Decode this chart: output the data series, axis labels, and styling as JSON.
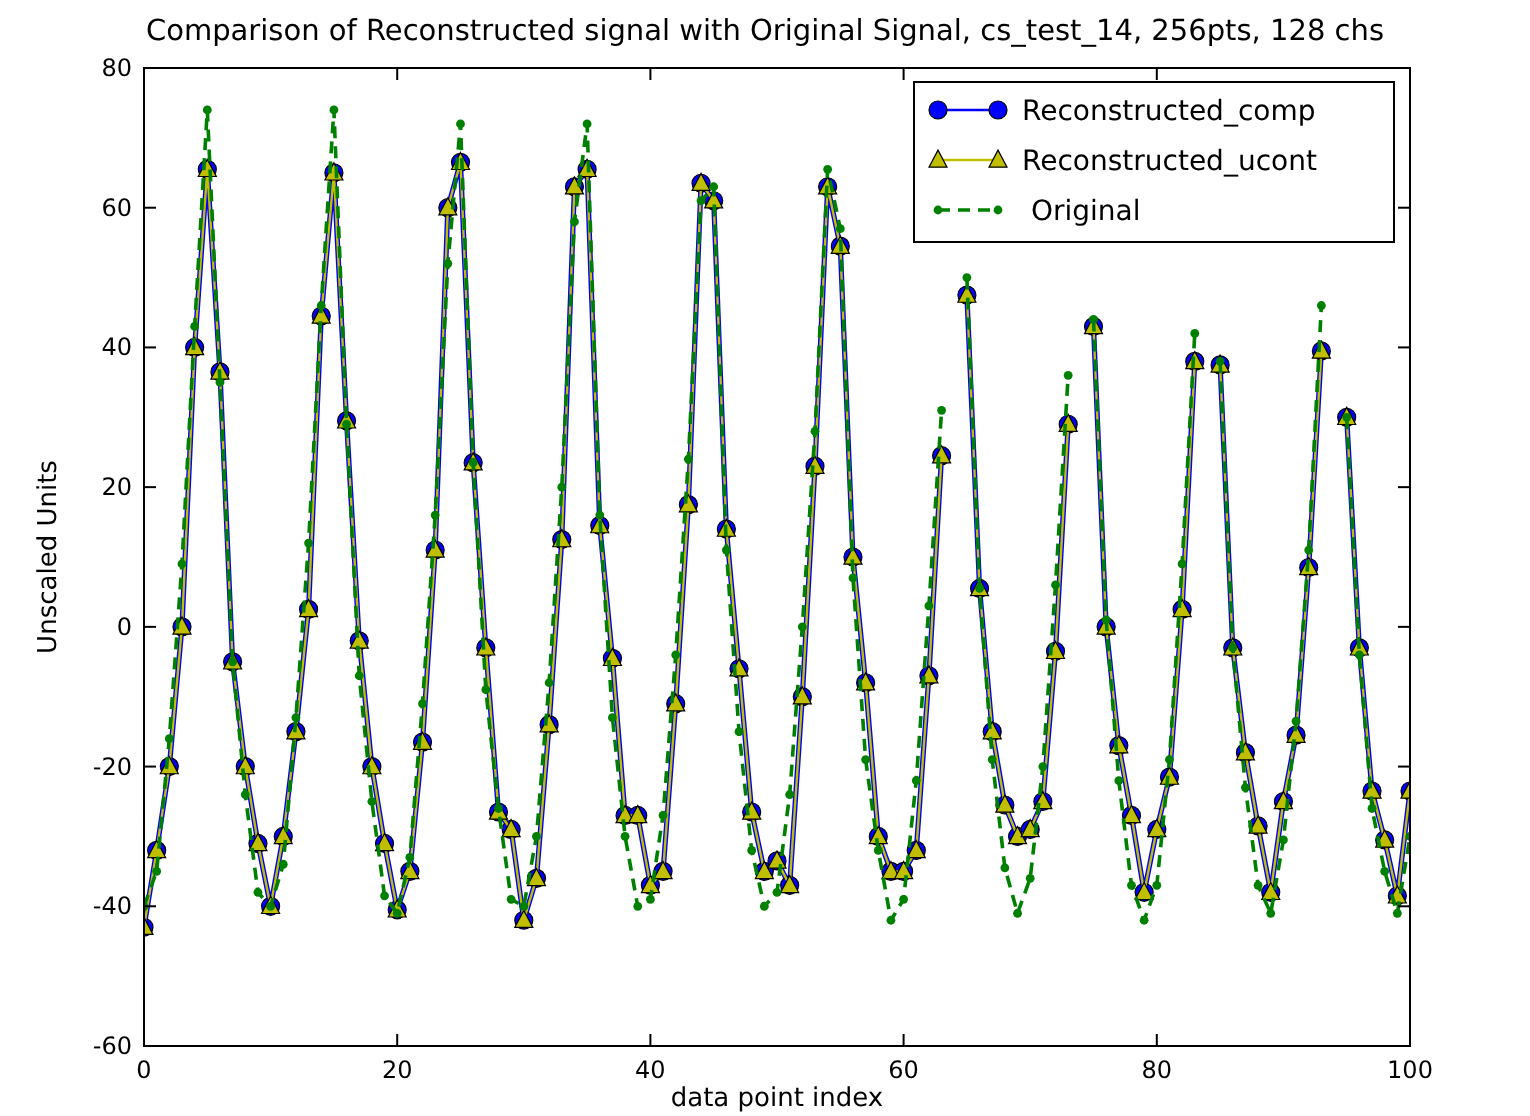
{
  "chart_data": {
    "type": "line",
    "title": "Comparison of Reconstructed signal with Original Signal, cs_test_14, 256pts, 128 chs",
    "xlabel": "data point index",
    "ylabel": "Unscaled Units",
    "x": [
      0,
      1,
      2,
      3,
      4,
      5,
      6,
      7,
      8,
      9,
      10,
      11,
      12,
      13,
      14,
      15,
      16,
      17,
      18,
      19,
      20,
      21,
      22,
      23,
      24,
      25,
      26,
      27,
      28,
      29,
      30,
      31,
      32,
      33,
      34,
      35,
      36,
      37,
      38,
      39,
      40,
      41,
      42,
      43,
      44,
      45,
      46,
      47,
      48,
      49,
      50,
      51,
      52,
      53,
      54,
      55,
      56,
      57,
      58,
      59,
      60,
      61,
      62,
      63,
      64,
      65,
      66,
      67,
      68,
      69,
      70,
      71,
      72,
      73,
      74,
      75,
      76,
      77,
      78,
      79,
      80,
      81,
      82,
      83,
      84,
      85,
      86,
      87,
      88,
      89,
      90,
      91,
      92,
      93,
      94,
      95,
      96,
      97,
      98,
      99,
      100
    ],
    "xlim": [
      0,
      100
    ],
    "xticks": [
      0,
      20,
      40,
      60,
      80,
      100
    ],
    "ylim": [
      -60,
      80
    ],
    "yticks": [
      -60,
      -40,
      -20,
      0,
      20,
      40,
      60,
      80
    ],
    "grid": false,
    "legend": "top right",
    "series": [
      {
        "name": "Reconstructed_comp",
        "color": "#0000ff",
        "marker": "circle",
        "line_style": "solid",
        "values": [
          -43,
          -32,
          -20,
          0,
          40,
          65.5,
          36.5,
          -5,
          -20,
          -31,
          -40,
          -30,
          -15,
          2.5,
          44.5,
          65,
          29.5,
          -2,
          -20,
          -31,
          -40.5,
          -35,
          -16.5,
          11,
          60,
          66.5,
          23.5,
          -3,
          -26.5,
          -29,
          -42,
          -36,
          -14,
          12.5,
          63,
          65.5,
          14.5,
          -4.5,
          -27,
          -27,
          -37,
          -35,
          -11,
          17.5,
          63.5,
          61,
          14,
          -6,
          -26.5,
          -35,
          -33.5,
          -37,
          -10,
          23,
          63,
          54.5,
          10,
          -8,
          -30,
          -35,
          -35,
          -32,
          -7,
          24.5,
          null,
          47.5,
          5.5,
          -15,
          -25.5,
          -30,
          -29,
          -25,
          -3.5,
          29,
          null,
          43,
          0,
          -17,
          -27,
          -38,
          -29,
          -21.5,
          2.5,
          38,
          null,
          37.5,
          -3,
          -18,
          -28.5,
          -38,
          -25,
          -15.5,
          8.5,
          39.5,
          null,
          30,
          -3,
          -23.5,
          -30.5,
          -38.5,
          -23.5
        ]
      },
      {
        "name": "Reconstructed_ucont",
        "color": "#bfbf00",
        "marker": "triangle",
        "line_style": "solid",
        "values": [
          -43,
          -32,
          -20,
          0,
          40,
          65.5,
          36.5,
          -5,
          -20,
          -31,
          -40,
          -30,
          -15,
          2.5,
          44.5,
          65,
          29.5,
          -2,
          -20,
          -31,
          -40.5,
          -35,
          -16.5,
          11,
          60,
          66.5,
          23.5,
          -3,
          -26.5,
          -29,
          -42,
          -36,
          -14,
          12.5,
          63,
          65.5,
          14.5,
          -4.5,
          -27,
          -27,
          -37,
          -35,
          -11,
          17.5,
          63.5,
          61,
          14,
          -6,
          -26.5,
          -35,
          -33.5,
          -37,
          -10,
          23,
          63,
          54.5,
          10,
          -8,
          -30,
          -35,
          -35,
          -32,
          -7,
          24.5,
          null,
          47.5,
          5.5,
          -15,
          -25.5,
          -30,
          -29,
          -25,
          -3.5,
          29,
          null,
          43,
          0,
          -17,
          -27,
          -38,
          -29,
          -21.5,
          2.5,
          38,
          null,
          37.5,
          -3,
          -18,
          -28.5,
          -38,
          -25,
          -15.5,
          8.5,
          39.5,
          null,
          30,
          -3,
          -23.5,
          -30.5,
          -38.5,
          -23.5
        ]
      },
      {
        "name": " Original",
        "color": "#008000",
        "marker": "circle",
        "line_style": "dashed",
        "values": [
          -40,
          -35,
          -16,
          9,
          43,
          74,
          35,
          -5,
          -24,
          -38,
          -40,
          -34,
          -13,
          12,
          46,
          74,
          29,
          -7,
          -25,
          -38.5,
          -41,
          -33,
          -11,
          16,
          52,
          72,
          23.5,
          -9,
          -26,
          -39,
          -40,
          -30,
          -8,
          20,
          58,
          72,
          16,
          -13,
          -30,
          -40,
          -39,
          -27,
          -4,
          24,
          61,
          63,
          11,
          -15,
          -32,
          -40,
          -38,
          -24,
          0,
          28,
          65.5,
          57,
          7,
          -19,
          -32,
          -42,
          -39,
          -22,
          3,
          31,
          null,
          50,
          5.5,
          -19,
          -34.5,
          -41,
          -36,
          -20,
          6,
          36,
          null,
          44,
          1,
          -22,
          -37,
          -42,
          -37,
          -19,
          9,
          42,
          null,
          38,
          -3,
          -23,
          -37,
          -41,
          -30.5,
          -13.5,
          11,
          46,
          null,
          30,
          -4,
          -26,
          -35,
          -41,
          -30
        ]
      }
    ]
  }
}
